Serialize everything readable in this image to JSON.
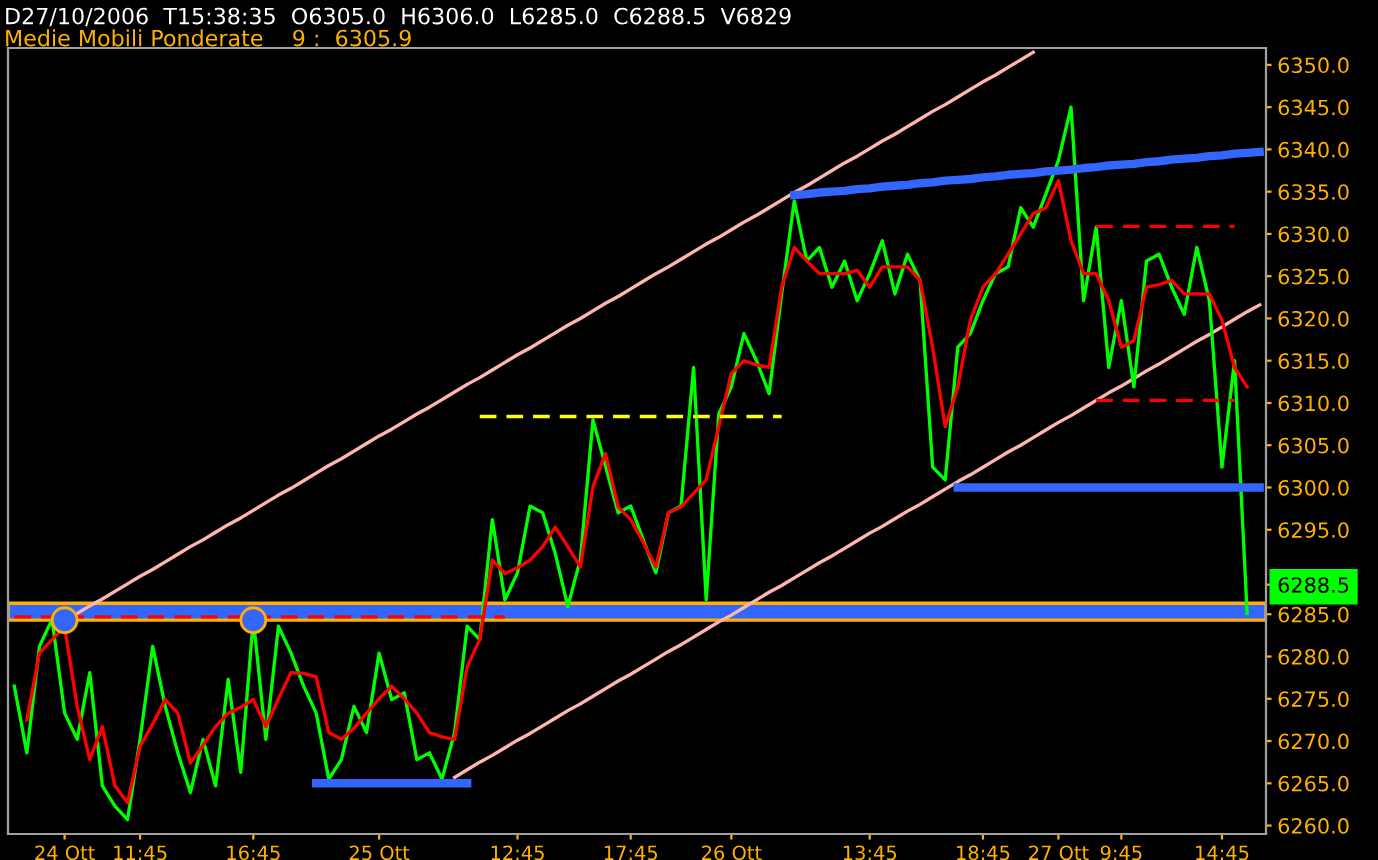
{
  "chart_data": {
    "type": "line",
    "title": "D27/10/2006  T15:38:35  O6305.0  H6306.0  L6285.0  C6288.5  V6829",
    "subtitle": "Medie Mobili Ponderate    9 :  6305.9",
    "categories": [
      null,
      null,
      null,
      null,
      "24 Ott",
      null,
      null,
      null,
      null,
      null,
      "11:45",
      null,
      null,
      null,
      null,
      null,
      null,
      null,
      null,
      "16:45",
      null,
      null,
      null,
      null,
      null,
      null,
      null,
      null,
      null,
      "25 Ott",
      null,
      null,
      null,
      null,
      null,
      null,
      null,
      null,
      null,
      null,
      "12:45",
      null,
      null,
      null,
      null,
      null,
      null,
      null,
      null,
      "17:45",
      null,
      null,
      null,
      null,
      null,
      null,
      null,
      "26 Ott",
      null,
      null,
      null,
      null,
      null,
      null,
      null,
      null,
      null,
      null,
      "13:45",
      null,
      null,
      null,
      null,
      null,
      null,
      null,
      null,
      "18:45",
      null,
      null,
      null,
      null,
      null,
      "27 Ott",
      null,
      null,
      null,
      null,
      "9:45",
      null,
      null,
      null,
      null,
      null,
      null,
      null,
      "14:45",
      null,
      null,
      null
    ],
    "ylim": [
      6259,
      6352
    ],
    "yticks": [
      {
        "value": 6260,
        "label": "6260.0"
      },
      {
        "value": 6265,
        "label": "6265.0"
      },
      {
        "value": 6270,
        "label": "6270.0"
      },
      {
        "value": 6275,
        "label": "6275.0"
      },
      {
        "value": 6280,
        "label": "6280.0"
      },
      {
        "value": 6285,
        "label": "6285.0"
      },
      {
        "value": 6288.5,
        "label": "6288.5"
      },
      {
        "value": 6295,
        "label": "6295.0"
      },
      {
        "value": 6300,
        "label": "6300.0"
      },
      {
        "value": 6305,
        "label": "6305.0"
      },
      {
        "value": 6310,
        "label": "6310.0"
      },
      {
        "value": 6315,
        "label": "6315.0"
      },
      {
        "value": 6320,
        "label": "6320.0"
      },
      {
        "value": 6325,
        "label": "6325.0"
      },
      {
        "value": 6330,
        "label": "6330.0"
      },
      {
        "value": 6335,
        "label": "6335.0"
      },
      {
        "value": 6340,
        "label": "6340.0"
      },
      {
        "value": 6345,
        "label": "6345.0"
      },
      {
        "value": 6350,
        "label": "6350.0"
      }
    ],
    "grid": false,
    "bands": [
      {
        "axis": "y",
        "from": 6284.3,
        "to": 6286.3,
        "color": "#3366ff"
      }
    ],
    "series": [
      {
        "color": "#ffb6b0",
        "values": [
          null,
          null,
          null,
          null,
          6284.3,
          6285.1,
          6286.0,
          6286.8,
          6287.7,
          6288.6,
          6289.5,
          6290.3,
          6291.2,
          6292.1,
          6293.0,
          6293.8,
          6294.7,
          6295.6,
          6296.4,
          6297.3,
          6298.2,
          6299.1,
          6299.9,
          6300.8,
          6301.7,
          6302.6,
          6303.4,
          6304.3,
          6305.2,
          6306.1,
          6306.9,
          6307.8,
          6308.7,
          6309.5,
          6310.4,
          6311.3,
          6312.2,
          6313.0,
          6313.9,
          6314.8,
          6315.7,
          6316.5,
          6317.4,
          6318.3,
          6319.2,
          6320.0,
          6320.9,
          6321.8,
          6322.6,
          6323.5,
          6324.4,
          6325.3,
          6326.1,
          6327.0,
          6327.9,
          6328.8,
          6329.6,
          6330.5,
          6331.4,
          6332.2,
          6333.1,
          6334.0,
          6334.9,
          6335.7,
          6336.6,
          6337.5,
          6338.4,
          6339.2,
          6340.1,
          6341.0,
          6341.8,
          6342.7,
          6343.6,
          6344.5,
          6345.3,
          6346.2,
          6347.1,
          6348.0,
          6348.8,
          6349.7,
          6350.6,
          6351.5,
          null,
          null,
          null,
          null,
          null,
          null,
          null,
          null,
          null,
          null,
          null,
          null,
          null,
          null,
          null,
          null,
          null,
          null
        ]
      },
      {
        "color": "#ffb6b0",
        "values": [
          null,
          null,
          null,
          null,
          null,
          null,
          null,
          null,
          null,
          null,
          null,
          null,
          null,
          null,
          null,
          null,
          null,
          null,
          null,
          null,
          null,
          null,
          null,
          null,
          null,
          null,
          null,
          null,
          null,
          null,
          null,
          null,
          null,
          null,
          null,
          6265.7,
          6266.6,
          6267.5,
          6268.3,
          6269.2,
          6270.1,
          6270.9,
          6271.8,
          6272.7,
          6273.6,
          6274.4,
          6275.3,
          6276.2,
          6277.1,
          6277.9,
          6278.8,
          6279.7,
          6280.6,
          6281.4,
          6282.3,
          6283.2,
          6284.1,
          6284.9,
          6285.8,
          6286.7,
          6287.6,
          6288.4,
          6289.3,
          6290.2,
          6291.1,
          6291.9,
          6292.8,
          6293.7,
          6294.6,
          6295.4,
          6296.3,
          6297.2,
          6298.0,
          6298.9,
          6299.8,
          6300.7,
          6301.5,
          6302.4,
          6303.3,
          6304.2,
          6305.0,
          6305.9,
          6306.8,
          6307.7,
          6308.5,
          6309.4,
          6310.3,
          6311.2,
          6312.0,
          6312.9,
          6313.8,
          6314.6,
          6315.5,
          6316.4,
          6317.3,
          6318.1,
          6319.0,
          6319.9,
          6320.8,
          6321.6
        ]
      },
      {
        "color": "#00ff00",
        "values": [
          6276.5,
          6268.6,
          6281.2,
          6284.4,
          6273.3,
          6270.2,
          6278.1,
          6264.7,
          6262.3,
          6260.7,
          6270.2,
          6281.2,
          6274.1,
          6268.6,
          6263.9,
          6270.2,
          6264.7,
          6277.3,
          6266.3,
          6284.4,
          6270.2,
          6283.6,
          6280.4,
          6276.5,
          6273.3,
          6265.5,
          6267.8,
          6274.1,
          6271.0,
          6280.4,
          6274.9,
          6275.7,
          6267.8,
          6268.6,
          6265.5,
          6271.0,
          6283.6,
          6282.0,
          6296.2,
          6286.7,
          6289.9,
          6297.8,
          6297.0,
          6292.2,
          6285.9,
          6291.5,
          6308.0,
          6302.5,
          6297.0,
          6297.8,
          6293.8,
          6289.9,
          6297.0,
          6297.8,
          6314.2,
          6286.7,
          6308.7,
          6311.9,
          6318.2,
          6315.0,
          6311.1,
          6322.9,
          6333.9,
          6326.8,
          6328.4,
          6323.7,
          6326.8,
          6322.1,
          6325.3,
          6329.2,
          6322.9,
          6327.6,
          6324.5,
          6302.4,
          6300.9,
          6316.6,
          6318.2,
          6322.1,
          6325.3,
          6326.1,
          6333.1,
          6330.8,
          6334.7,
          6338.7,
          6345.0,
          6322.1,
          6330.8,
          6314.2,
          6322.1,
          6311.9,
          6326.8,
          6327.6,
          6323.7,
          6320.5,
          6328.4,
          6322.1,
          6302.4,
          6315.0,
          6285.1,
          null
        ]
      },
      {
        "color": "#ff0000",
        "values": [
          null,
          6272.5,
          6280.4,
          6282.0,
          6283.5,
          6274.1,
          6267.8,
          6271.7,
          6264.7,
          6262.7,
          6269.4,
          6272.0,
          6274.9,
          6273.3,
          6267.4,
          6269.5,
          6271.7,
          6273.3,
          6274.0,
          6274.9,
          6271.7,
          6275.0,
          6278.1,
          6278.0,
          6277.6,
          6271.0,
          6270.2,
          6271.5,
          6273.3,
          6275.0,
          6276.5,
          6275.0,
          6273.3,
          6271.0,
          6270.5,
          6270.2,
          6278.8,
          6282.0,
          6291.4,
          6289.8,
          6290.5,
          6291.4,
          6293.0,
          6295.3,
          6293.0,
          6290.6,
          6300.1,
          6304.0,
          6297.7,
          6296.2,
          6293.5,
          6290.6,
          6297.0,
          6297.7,
          6299.3,
          6300.9,
          6307.2,
          6313.5,
          6315.0,
          6314.5,
          6314.2,
          6323.7,
          6328.4,
          6326.8,
          6325.3,
          6325.3,
          6325.3,
          6325.7,
          6323.7,
          6326.1,
          6326.1,
          6326.1,
          6324.5,
          6316.6,
          6307.2,
          6311.9,
          6319.8,
          6323.7,
          6325.3,
          6327.6,
          6330.0,
          6332.4,
          6333.1,
          6336.3,
          6329.2,
          6325.3,
          6325.3,
          6322.1,
          6316.6,
          6317.4,
          6323.7,
          6324.0,
          6324.5,
          6322.9,
          6322.9,
          6322.9,
          6319.8,
          6314.2,
          6311.9,
          null
        ]
      },
      {
        "color": "#3366ff",
        "values": [
          null,
          null,
          null,
          null,
          null,
          null,
          null,
          null,
          null,
          null,
          null,
          null,
          null,
          null,
          null,
          null,
          null,
          null,
          null,
          null,
          null,
          null,
          null,
          null,
          null,
          null,
          null,
          null,
          null,
          null,
          null,
          null,
          null,
          null,
          null,
          null,
          null,
          null,
          null,
          null,
          null,
          null,
          null,
          null,
          null,
          null,
          null,
          null,
          null,
          null,
          null,
          null,
          null,
          null,
          null,
          null,
          null,
          null,
          null,
          null,
          null,
          null,
          6334.6,
          6334.7,
          6334.9,
          6335.0,
          6335.1,
          6335.3,
          6335.4,
          6335.6,
          6335.7,
          6335.8,
          6336.0,
          6336.1,
          6336.3,
          6336.4,
          6336.5,
          6336.7,
          6336.8,
          6337.0,
          6337.1,
          6337.2,
          6337.4,
          6337.5,
          6337.6,
          6337.8,
          6337.9,
          6338.1,
          6338.2,
          6338.3,
          6338.5,
          6338.6,
          6338.8,
          6338.9,
          6339.0,
          6339.2,
          6339.3,
          6339.5,
          6339.6,
          6339.7
        ]
      },
      {
        "color": "#3366ff",
        "values": [
          null,
          null,
          null,
          null,
          null,
          null,
          null,
          null,
          null,
          null,
          null,
          null,
          null,
          null,
          null,
          null,
          null,
          null,
          null,
          null,
          null,
          null,
          null,
          null,
          null,
          null,
          null,
          null,
          null,
          null,
          null,
          null,
          null,
          null,
          null,
          null,
          null,
          null,
          null,
          null,
          null,
          null,
          null,
          null,
          null,
          null,
          null,
          null,
          null,
          null,
          null,
          null,
          null,
          null,
          null,
          null,
          null,
          null,
          null,
          null,
          null,
          null,
          null,
          null,
          null,
          null,
          null,
          null,
          null,
          null,
          null,
          null,
          null,
          null,
          null,
          6300.0,
          6300.0,
          6300.0,
          6300.0,
          6300.0,
          6300.0,
          6300.0,
          6300.0,
          6300.0,
          6300.0,
          6300.0,
          6300.0,
          6300.0,
          6300.0,
          6300.0,
          6300.0,
          6300.0,
          6300.0,
          6300.0,
          6300.0,
          6300.0,
          6300.0,
          6300.0,
          6300.0,
          6300.0
        ]
      },
      {
        "color": "#3366ff",
        "values": [
          null,
          null,
          null,
          null,
          null,
          null,
          null,
          null,
          null,
          null,
          null,
          null,
          null,
          null,
          null,
          null,
          null,
          null,
          null,
          null,
          null,
          null,
          null,
          null,
          6265.0,
          6265.0,
          6265.0,
          6265.0,
          6265.0,
          6265.0,
          6265.0,
          6265.0,
          6265.0,
          6265.0,
          6265.0,
          6265.0,
          6265.0,
          null,
          null,
          null,
          null,
          null,
          null,
          null,
          null,
          null,
          null,
          null,
          null,
          null,
          null,
          null,
          null,
          null,
          null,
          null,
          null,
          null,
          null,
          null,
          null,
          null,
          null,
          null,
          null,
          null,
          null,
          null,
          null,
          null,
          null,
          null,
          null,
          null,
          null,
          null,
          null,
          null,
          null,
          null,
          null,
          null,
          null,
          null,
          null,
          null,
          null,
          null,
          null,
          null,
          null,
          null,
          null,
          null,
          null,
          null,
          null,
          null,
          null,
          null
        ]
      },
      {
        "color": "#ff0000",
        "line_style": "dashed",
        "values": [
          6284.7,
          6284.7,
          6284.7,
          6284.7,
          6284.7,
          6284.7,
          6284.7,
          6284.7,
          6284.7,
          6284.7,
          6284.7,
          6284.7,
          6284.7,
          6284.7,
          6284.7,
          6284.7,
          6284.7,
          6284.7,
          6284.7,
          6284.7,
          6284.7,
          6284.7,
          6284.7,
          6284.7,
          6284.7,
          6284.7,
          6284.7,
          6284.7,
          6284.7,
          6284.7,
          6284.7,
          6284.7,
          6284.7,
          6284.7,
          6284.7,
          6284.7,
          6284.7,
          6284.7,
          6284.7,
          6284.7,
          null,
          null,
          null,
          null,
          null,
          null,
          null,
          null,
          null,
          null,
          null,
          null,
          null,
          null,
          null,
          null,
          null,
          null,
          null,
          null,
          null,
          null,
          null,
          null,
          null,
          null,
          null,
          null,
          null,
          null,
          null,
          null,
          null,
          null,
          null,
          null,
          null,
          null,
          null,
          null,
          null,
          null,
          null,
          null,
          null,
          null,
          null,
          null,
          null,
          null,
          null,
          null,
          null,
          null,
          null,
          null,
          null,
          null,
          null,
          null
        ]
      },
      {
        "color": "#ffff00",
        "line_style": "dashed",
        "values": [
          null,
          null,
          null,
          null,
          null,
          null,
          null,
          null,
          null,
          null,
          null,
          null,
          null,
          null,
          null,
          null,
          null,
          null,
          null,
          null,
          null,
          null,
          null,
          null,
          null,
          null,
          null,
          null,
          null,
          null,
          null,
          null,
          null,
          null,
          null,
          null,
          null,
          6308.4,
          6308.4,
          6308.4,
          6308.4,
          6308.4,
          6308.4,
          6308.4,
          6308.4,
          6308.4,
          6308.4,
          6308.4,
          6308.4,
          6308.4,
          6308.4,
          6308.4,
          6308.4,
          6308.4,
          6308.4,
          6308.4,
          6308.4,
          6308.4,
          6308.4,
          6308.4,
          6308.4,
          6308.4,
          null,
          null,
          null,
          null,
          null,
          null,
          null,
          null,
          null,
          null,
          null,
          null,
          null,
          null,
          null,
          null,
          null,
          null,
          null,
          null,
          null,
          null,
          null,
          null,
          null,
          null,
          null,
          null,
          null,
          null,
          null,
          null,
          null,
          null,
          null,
          null,
          null,
          null
        ]
      },
      {
        "color": "#ff0000",
        "line_style": "dashed",
        "values": [
          null,
          null,
          null,
          null,
          null,
          null,
          null,
          null,
          null,
          null,
          null,
          null,
          null,
          null,
          null,
          null,
          null,
          null,
          null,
          null,
          null,
          null,
          null,
          null,
          null,
          null,
          null,
          null,
          null,
          null,
          null,
          null,
          null,
          null,
          null,
          null,
          null,
          null,
          null,
          null,
          null,
          null,
          null,
          null,
          null,
          null,
          null,
          null,
          null,
          null,
          null,
          null,
          null,
          null,
          null,
          null,
          null,
          null,
          null,
          null,
          null,
          null,
          null,
          null,
          null,
          null,
          null,
          null,
          null,
          null,
          null,
          null,
          null,
          null,
          null,
          null,
          null,
          null,
          null,
          null,
          null,
          null,
          null,
          null,
          null,
          null,
          6330.9,
          6330.9,
          6330.9,
          6330.9,
          6330.9,
          6330.9,
          6330.9,
          6330.9,
          6330.9,
          6330.9,
          6330.9,
          6330.9,
          null,
          null
        ]
      },
      {
        "color": "#ff0000",
        "line_style": "dashed",
        "values": [
          null,
          null,
          null,
          null,
          null,
          null,
          null,
          null,
          null,
          null,
          null,
          null,
          null,
          null,
          null,
          null,
          null,
          null,
          null,
          null,
          null,
          null,
          null,
          null,
          null,
          null,
          null,
          null,
          null,
          null,
          null,
          null,
          null,
          null,
          null,
          null,
          null,
          null,
          null,
          null,
          null,
          null,
          null,
          null,
          null,
          null,
          null,
          null,
          null,
          null,
          null,
          null,
          null,
          null,
          null,
          null,
          null,
          null,
          null,
          null,
          null,
          null,
          null,
          null,
          null,
          null,
          null,
          null,
          null,
          null,
          null,
          null,
          null,
          null,
          null,
          null,
          null,
          null,
          null,
          null,
          null,
          null,
          null,
          null,
          null,
          null,
          6310.3,
          6310.3,
          6310.3,
          6310.3,
          6310.3,
          6310.3,
          6310.3,
          6310.3,
          6310.3,
          6310.3,
          6310.3,
          6310.3,
          null,
          null
        ]
      },
      {
        "type": "scatter",
        "marker": "circle",
        "color": "#3366ff",
        "values": [
          null,
          null,
          null,
          null,
          6284.3,
          null,
          null,
          null,
          null,
          null,
          null,
          null,
          null,
          null,
          null,
          null,
          null,
          null,
          null,
          6284.3,
          null,
          null,
          null,
          null,
          null,
          null,
          null,
          null,
          null,
          null,
          null,
          null,
          null,
          null,
          null,
          null,
          null,
          null,
          null,
          null,
          null,
          null,
          null,
          null,
          null,
          null,
          null,
          null,
          null,
          null,
          null,
          null,
          null,
          null,
          null,
          null,
          null,
          null,
          null,
          null,
          null,
          null,
          null,
          null,
          null,
          null,
          null,
          null,
          null,
          null,
          null,
          null,
          null,
          null,
          null,
          null,
          null,
          null,
          null,
          null,
          null,
          null,
          null,
          null,
          null,
          null,
          null,
          null,
          null,
          null,
          null,
          null,
          null,
          null,
          null,
          null,
          null,
          null,
          null,
          null
        ]
      }
    ]
  }
}
